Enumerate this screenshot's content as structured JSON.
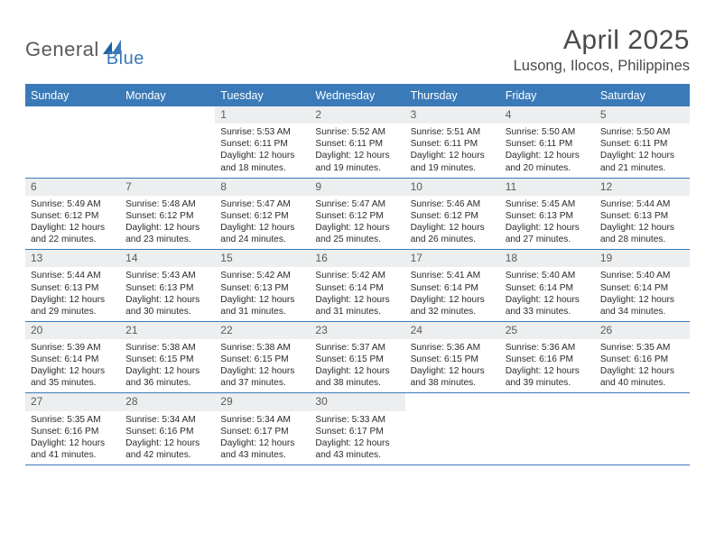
{
  "logo": {
    "part1": "General",
    "part2": "Blue"
  },
  "header": {
    "month_title": "April 2025",
    "location": "Lusong, Ilocos, Philippines"
  },
  "calendar": {
    "header_bg": "#3a7ab8",
    "border_color": "#3a7ab8",
    "daynum_bg": "#eceeef",
    "day_names": [
      "Sunday",
      "Monday",
      "Tuesday",
      "Wednesday",
      "Thursday",
      "Friday",
      "Saturday"
    ],
    "weeks": [
      [
        null,
        null,
        {
          "num": "1",
          "sunrise": "Sunrise: 5:53 AM",
          "sunset": "Sunset: 6:11 PM",
          "daylight": "Daylight: 12 hours and 18 minutes."
        },
        {
          "num": "2",
          "sunrise": "Sunrise: 5:52 AM",
          "sunset": "Sunset: 6:11 PM",
          "daylight": "Daylight: 12 hours and 19 minutes."
        },
        {
          "num": "3",
          "sunrise": "Sunrise: 5:51 AM",
          "sunset": "Sunset: 6:11 PM",
          "daylight": "Daylight: 12 hours and 19 minutes."
        },
        {
          "num": "4",
          "sunrise": "Sunrise: 5:50 AM",
          "sunset": "Sunset: 6:11 PM",
          "daylight": "Daylight: 12 hours and 20 minutes."
        },
        {
          "num": "5",
          "sunrise": "Sunrise: 5:50 AM",
          "sunset": "Sunset: 6:11 PM",
          "daylight": "Daylight: 12 hours and 21 minutes."
        }
      ],
      [
        {
          "num": "6",
          "sunrise": "Sunrise: 5:49 AM",
          "sunset": "Sunset: 6:12 PM",
          "daylight": "Daylight: 12 hours and 22 minutes."
        },
        {
          "num": "7",
          "sunrise": "Sunrise: 5:48 AM",
          "sunset": "Sunset: 6:12 PM",
          "daylight": "Daylight: 12 hours and 23 minutes."
        },
        {
          "num": "8",
          "sunrise": "Sunrise: 5:47 AM",
          "sunset": "Sunset: 6:12 PM",
          "daylight": "Daylight: 12 hours and 24 minutes."
        },
        {
          "num": "9",
          "sunrise": "Sunrise: 5:47 AM",
          "sunset": "Sunset: 6:12 PM",
          "daylight": "Daylight: 12 hours and 25 minutes."
        },
        {
          "num": "10",
          "sunrise": "Sunrise: 5:46 AM",
          "sunset": "Sunset: 6:12 PM",
          "daylight": "Daylight: 12 hours and 26 minutes."
        },
        {
          "num": "11",
          "sunrise": "Sunrise: 5:45 AM",
          "sunset": "Sunset: 6:13 PM",
          "daylight": "Daylight: 12 hours and 27 minutes."
        },
        {
          "num": "12",
          "sunrise": "Sunrise: 5:44 AM",
          "sunset": "Sunset: 6:13 PM",
          "daylight": "Daylight: 12 hours and 28 minutes."
        }
      ],
      [
        {
          "num": "13",
          "sunrise": "Sunrise: 5:44 AM",
          "sunset": "Sunset: 6:13 PM",
          "daylight": "Daylight: 12 hours and 29 minutes."
        },
        {
          "num": "14",
          "sunrise": "Sunrise: 5:43 AM",
          "sunset": "Sunset: 6:13 PM",
          "daylight": "Daylight: 12 hours and 30 minutes."
        },
        {
          "num": "15",
          "sunrise": "Sunrise: 5:42 AM",
          "sunset": "Sunset: 6:13 PM",
          "daylight": "Daylight: 12 hours and 31 minutes."
        },
        {
          "num": "16",
          "sunrise": "Sunrise: 5:42 AM",
          "sunset": "Sunset: 6:14 PM",
          "daylight": "Daylight: 12 hours and 31 minutes."
        },
        {
          "num": "17",
          "sunrise": "Sunrise: 5:41 AM",
          "sunset": "Sunset: 6:14 PM",
          "daylight": "Daylight: 12 hours and 32 minutes."
        },
        {
          "num": "18",
          "sunrise": "Sunrise: 5:40 AM",
          "sunset": "Sunset: 6:14 PM",
          "daylight": "Daylight: 12 hours and 33 minutes."
        },
        {
          "num": "19",
          "sunrise": "Sunrise: 5:40 AM",
          "sunset": "Sunset: 6:14 PM",
          "daylight": "Daylight: 12 hours and 34 minutes."
        }
      ],
      [
        {
          "num": "20",
          "sunrise": "Sunrise: 5:39 AM",
          "sunset": "Sunset: 6:14 PM",
          "daylight": "Daylight: 12 hours and 35 minutes."
        },
        {
          "num": "21",
          "sunrise": "Sunrise: 5:38 AM",
          "sunset": "Sunset: 6:15 PM",
          "daylight": "Daylight: 12 hours and 36 minutes."
        },
        {
          "num": "22",
          "sunrise": "Sunrise: 5:38 AM",
          "sunset": "Sunset: 6:15 PM",
          "daylight": "Daylight: 12 hours and 37 minutes."
        },
        {
          "num": "23",
          "sunrise": "Sunrise: 5:37 AM",
          "sunset": "Sunset: 6:15 PM",
          "daylight": "Daylight: 12 hours and 38 minutes."
        },
        {
          "num": "24",
          "sunrise": "Sunrise: 5:36 AM",
          "sunset": "Sunset: 6:15 PM",
          "daylight": "Daylight: 12 hours and 38 minutes."
        },
        {
          "num": "25",
          "sunrise": "Sunrise: 5:36 AM",
          "sunset": "Sunset: 6:16 PM",
          "daylight": "Daylight: 12 hours and 39 minutes."
        },
        {
          "num": "26",
          "sunrise": "Sunrise: 5:35 AM",
          "sunset": "Sunset: 6:16 PM",
          "daylight": "Daylight: 12 hours and 40 minutes."
        }
      ],
      [
        {
          "num": "27",
          "sunrise": "Sunrise: 5:35 AM",
          "sunset": "Sunset: 6:16 PM",
          "daylight": "Daylight: 12 hours and 41 minutes."
        },
        {
          "num": "28",
          "sunrise": "Sunrise: 5:34 AM",
          "sunset": "Sunset: 6:16 PM",
          "daylight": "Daylight: 12 hours and 42 minutes."
        },
        {
          "num": "29",
          "sunrise": "Sunrise: 5:34 AM",
          "sunset": "Sunset: 6:17 PM",
          "daylight": "Daylight: 12 hours and 43 minutes."
        },
        {
          "num": "30",
          "sunrise": "Sunrise: 5:33 AM",
          "sunset": "Sunset: 6:17 PM",
          "daylight": "Daylight: 12 hours and 43 minutes."
        },
        null,
        null,
        null
      ]
    ]
  }
}
